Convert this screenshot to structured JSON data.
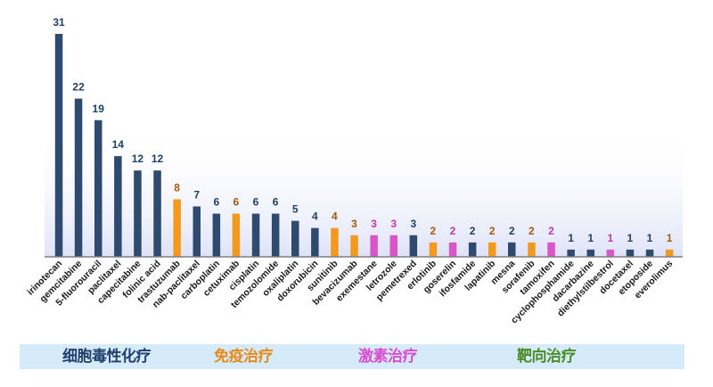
{
  "colors": {
    "chemo": "#2e4a6e",
    "immuno": "#f39a1e",
    "hormone": "#d955c9",
    "targeted": "#2e4a6e",
    "label_chemo": "#1f3f66",
    "label_immuno": "#a35a10",
    "label_hormone": "#c039b0",
    "label_targeted": "#1f3f66",
    "legend_chemo": "#1e3e6e",
    "legend_immuno": "#e58a1a",
    "legend_hormone": "#d84cd0",
    "legend_targeted": "#4b8a28",
    "legend_bg": "#d6ebfa",
    "axis": "#7f7f7f"
  },
  "chart_data": {
    "type": "bar",
    "title": "",
    "xlabel": "",
    "ylabel": "",
    "ylim": [
      0,
      31
    ],
    "grid": false,
    "legend_placement": "bottom",
    "categories": [
      "irinotecan",
      "gemcitabine",
      "5-fluorouracil",
      "paclitaxel",
      "capecitabine",
      "folinic acid",
      "trastuzumab",
      "nab-paclitaxel",
      "carboplatin",
      "cetuximab",
      "cisplatin",
      "temozolomide",
      "oxaliplatin",
      "doxorubicin",
      "sunitinib",
      "bevacizumab",
      "exemestane",
      "letrozole",
      "pemetrexed",
      "erlotinib",
      "goserelin",
      "ifosfamide",
      "lapatinib",
      "mesna",
      "sorafenib",
      "tamoxifen",
      "cyclophosphamide",
      "dacarbazine",
      "diethylstilbestrol",
      "docetaxel",
      "etoposide",
      "everolimus"
    ],
    "values": [
      31,
      22,
      19,
      14,
      12,
      12,
      8,
      7,
      6,
      6,
      6,
      6,
      5,
      4,
      4,
      3,
      3,
      3,
      3,
      2,
      2,
      2,
      2,
      2,
      2,
      2,
      1,
      1,
      1,
      1,
      1,
      1
    ],
    "groups": [
      "chemo",
      "chemo",
      "chemo",
      "chemo",
      "chemo",
      "chemo",
      "immuno",
      "chemo",
      "chemo",
      "immuno",
      "chemo",
      "chemo",
      "chemo",
      "chemo",
      "immuno",
      "immuno",
      "hormone",
      "hormone",
      "chemo",
      "immuno",
      "hormone",
      "chemo",
      "immuno",
      "chemo",
      "immuno",
      "hormone",
      "chemo",
      "chemo",
      "hormone",
      "chemo",
      "chemo",
      "immuno"
    ]
  },
  "legend": [
    {
      "key": "chemo",
      "label": "细胞毒性化疗"
    },
    {
      "key": "immuno",
      "label": "免疫治疗"
    },
    {
      "key": "hormone",
      "label": "激素治疗"
    },
    {
      "key": "targeted",
      "label": "靶向治疗"
    }
  ]
}
